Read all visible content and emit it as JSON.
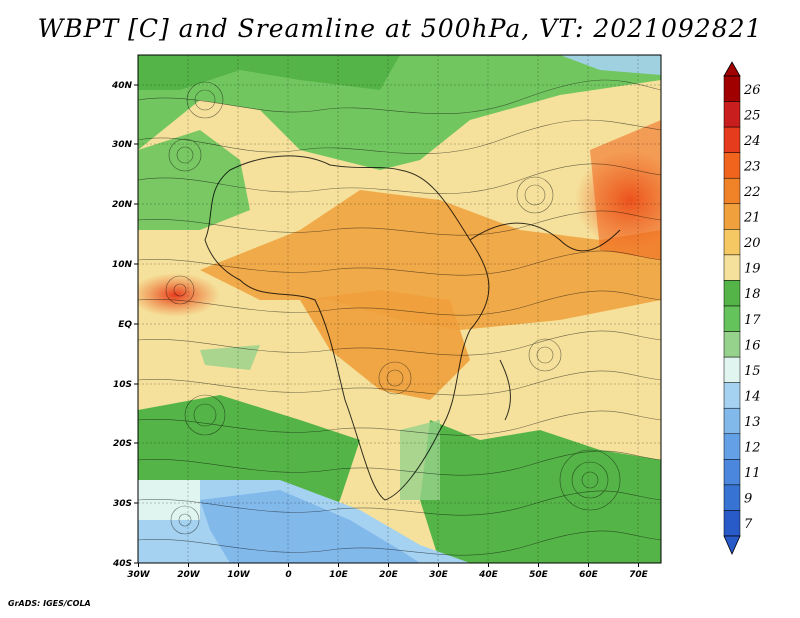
{
  "title": "WBPT [C] and Sreamline at 500hPa, VT: 2021092821",
  "credit": "GrADS: IGES/COLA",
  "map": {
    "variable": "WBPT [C]",
    "overlay": "Streamline",
    "level": "500hPa",
    "valid_time": "2021092821",
    "lon_range": [
      -30,
      75
    ],
    "lat_range": [
      -40,
      45
    ],
    "x_tick_labels": [
      "30W",
      "20W",
      "10W",
      "0",
      "10E",
      "20E",
      "30E",
      "40E",
      "50E",
      "60E",
      "70E"
    ],
    "y_tick_labels": [
      "40N",
      "30N",
      "20N",
      "10N",
      "EQ",
      "10S",
      "20S",
      "30S",
      "40S"
    ]
  },
  "colorbar": {
    "labels": [
      "26",
      "25",
      "24",
      "23",
      "22",
      "21",
      "20",
      "19",
      "18",
      "17",
      "16",
      "15",
      "14",
      "13",
      "12",
      "11",
      "9",
      "7"
    ],
    "colors": [
      "#a00000",
      "#c81e1e",
      "#e63c1e",
      "#f0641e",
      "#f08228",
      "#f0a03c",
      "#f5c864",
      "#f5e19b",
      "#55b447",
      "#64c35a",
      "#96d28c",
      "#e1f5f0",
      "#a5d2f0",
      "#82b9eb",
      "#64a0e6",
      "#4b87dc",
      "#3773d2",
      "#285ac8"
    ]
  }
}
